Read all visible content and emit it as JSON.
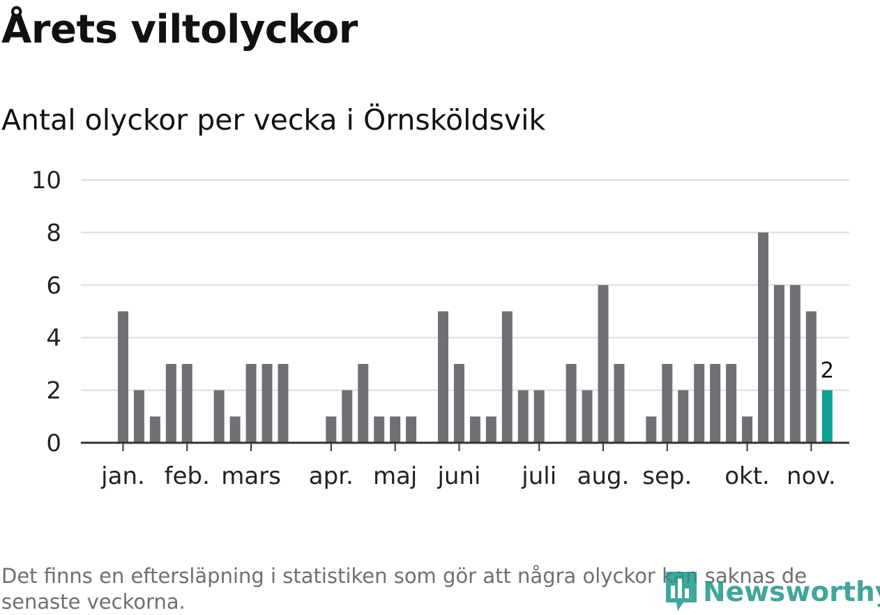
{
  "chart_data": {
    "type": "bar",
    "title": "Årets viltolyckor",
    "subtitle": "Antal olyckor per vecka i Örnsköldsvik",
    "xlabel": "",
    "ylabel": "",
    "ylim": [
      0,
      10
    ],
    "yticks": [
      0,
      2,
      4,
      6,
      8,
      10
    ],
    "grid": true,
    "weeks": [
      1,
      2,
      3,
      4,
      5,
      6,
      7,
      8,
      9,
      10,
      11,
      12,
      13,
      14,
      15,
      16,
      17,
      18,
      19,
      20,
      21,
      22,
      23,
      24,
      25,
      26,
      27,
      28,
      29,
      30,
      31,
      32,
      33,
      34,
      35,
      36,
      37,
      38,
      39,
      40,
      41,
      42,
      43,
      44,
      45
    ],
    "values": [
      5,
      2,
      1,
      3,
      3,
      0,
      2,
      1,
      3,
      3,
      3,
      0,
      0,
      1,
      2,
      3,
      1,
      1,
      1,
      0,
      5,
      3,
      1,
      1,
      5,
      2,
      2,
      0,
      3,
      2,
      6,
      3,
      0,
      1,
      3,
      2,
      3,
      3,
      3,
      1,
      8,
      6,
      6,
      5,
      2
    ],
    "highlight": {
      "week": 45,
      "value": 2,
      "label": "2"
    },
    "month_ticks": [
      {
        "label": "jan.",
        "week": 1
      },
      {
        "label": "feb.",
        "week": 5
      },
      {
        "label": "mars",
        "week": 9
      },
      {
        "label": "apr.",
        "week": 14
      },
      {
        "label": "maj",
        "week": 18
      },
      {
        "label": "juni",
        "week": 22
      },
      {
        "label": "juli",
        "week": 27
      },
      {
        "label": "aug.",
        "week": 31
      },
      {
        "label": "sep.",
        "week": 35
      },
      {
        "label": "okt.",
        "week": 40
      },
      {
        "label": "nov.",
        "week": 44
      }
    ]
  },
  "footnote": "Det finns en eftersläpning i statistiken som gör att några olyckor kan saknas de senaste veckorna.",
  "brand": {
    "name": "Newsworthy"
  },
  "colors": {
    "bar": "#706f74",
    "highlight": "#0fa296",
    "grid": "#dcdcdc",
    "axis": "#333333",
    "brand": "#20968a"
  }
}
